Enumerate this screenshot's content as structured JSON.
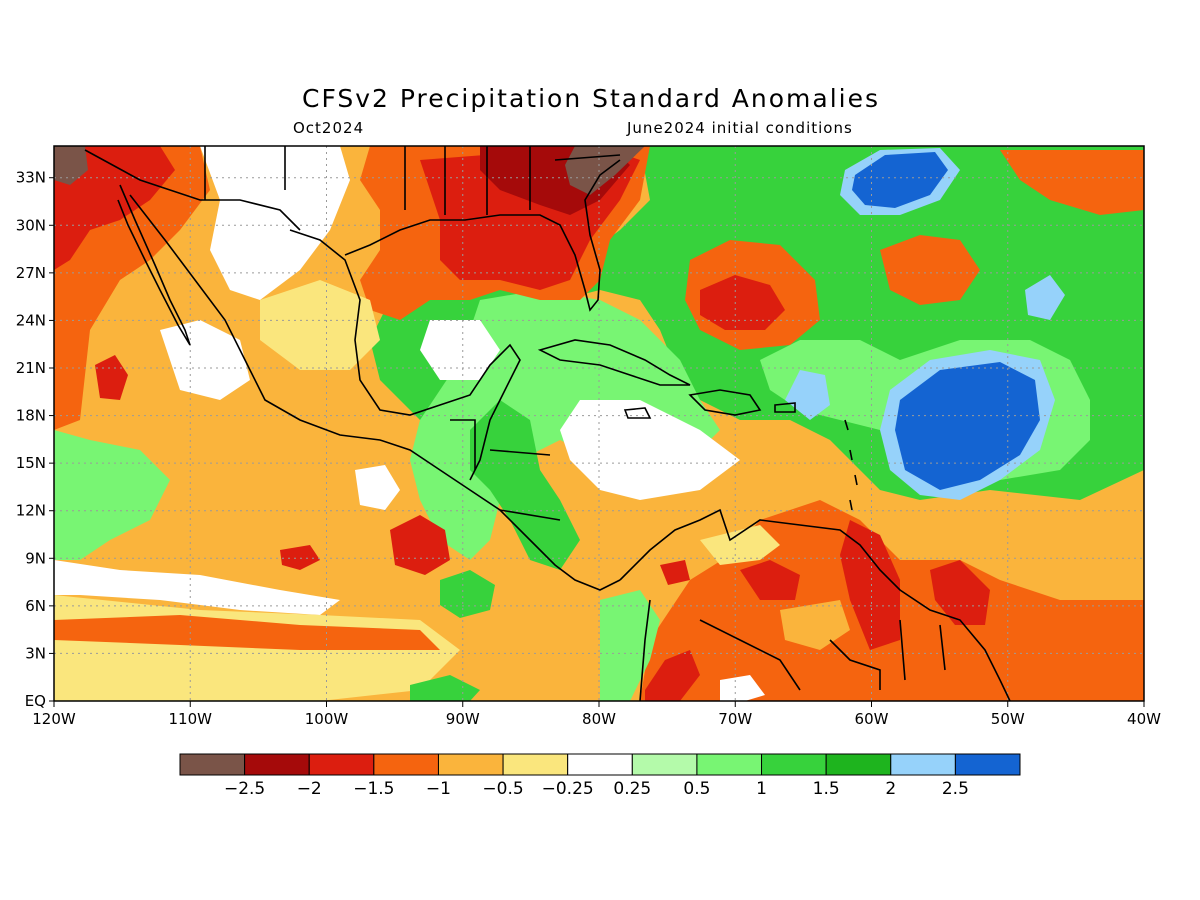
{
  "map": {
    "title": "CFSv2 Precipitation Standard Anomalies",
    "valid_month": "Oct2024",
    "init_conditions": "June2024 initial conditions",
    "lon_range": [
      -120,
      -40
    ],
    "lat_range": [
      0,
      35
    ],
    "lon_ticks": [
      "120W",
      "110W",
      "100W",
      "90W",
      "80W",
      "70W",
      "60W",
      "50W",
      "40W"
    ],
    "lat_ticks": [
      "EQ",
      "3N",
      "6N",
      "9N",
      "12N",
      "15N",
      "18N",
      "21N",
      "24N",
      "27N",
      "30N",
      "33N"
    ],
    "grid": true,
    "grid_style": "dotted"
  },
  "colorbar": {
    "colors": [
      "#7a5448",
      "#a50a0a",
      "#dc1e0f",
      "#f5640f",
      "#fab43c",
      "#fae67d",
      "#ffffff",
      "#b4faaa",
      "#78f573",
      "#37d23c",
      "#1eb41e",
      "#96d2fa",
      "#1464d2"
    ],
    "labels": [
      "−2.5",
      "−2",
      "−1.5",
      "−1",
      "−0.5",
      "−0.25",
      "0.25",
      "0.5",
      "1",
      "1.5",
      "2",
      "2.5"
    ]
  }
}
